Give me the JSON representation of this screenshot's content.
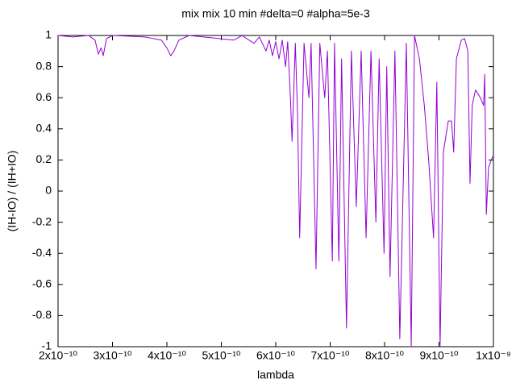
{
  "chart_data": {
    "type": "line",
    "title": "mix mix 10 min #delta=0 #alpha=5e-3",
    "xlabel": "lambda",
    "ylabel": "(IH-IO) / (IH+IO)",
    "x": [
      2e-10,
      2.27e-10,
      2.56e-10,
      2.68e-10,
      2.74e-10,
      2.79e-10,
      2.83e-10,
      2.89e-10,
      3.01e-10,
      3.6e-10,
      3.9e-10,
      4e-10,
      4.07e-10,
      4.13e-10,
      4.22e-10,
      4.41e-10,
      5.23e-10,
      5.38e-10,
      5.6e-10,
      5.7e-10,
      5.82e-10,
      5.88e-10,
      5.94e-10,
      6e-10,
      6.06e-10,
      6.12e-10,
      6.18e-10,
      6.22e-10,
      6.27e-10,
      6.3e-10,
      6.36e-10,
      6.4e-10,
      6.44e-10,
      6.52e-10,
      6.61e-10,
      6.65e-10,
      6.74e-10,
      6.81e-10,
      6.9e-10,
      6.95e-10,
      7.04e-10,
      7.08e-10,
      7.16e-10,
      7.21e-10,
      7.3e-10,
      7.39e-10,
      7.48e-10,
      7.57e-10,
      7.66e-10,
      7.75e-10,
      7.84e-10,
      7.9e-10,
      7.99e-10,
      8.04e-10,
      8.1e-10,
      8.19e-10,
      8.28e-10,
      8.34e-10,
      8.4e-10,
      8.49e-10,
      8.55e-10,
      8.64e-10,
      8.73e-10,
      8.81e-10,
      8.9e-10,
      8.96e-10,
      9.02e-10,
      9.08e-10,
      9.17e-10,
      9.23e-10,
      9.27e-10,
      9.32e-10,
      9.41e-10,
      9.47e-10,
      9.53e-10,
      9.57e-10,
      9.61e-10,
      9.67e-10,
      9.76e-10,
      9.82e-10,
      9.84e-10,
      9.87e-10,
      9.91e-10,
      9.96e-10,
      1e-09
    ],
    "series": [
      {
        "color": "#9400d3",
        "values": [
          1,
          0.99,
          1,
          0.97,
          0.88,
          0.92,
          0.87,
          0.98,
          1,
          0.99,
          0.97,
          0.92,
          0.87,
          0.9,
          0.97,
          1,
          0.97,
          1,
          0.95,
          0.99,
          0.9,
          0.97,
          0.87,
          0.96,
          0.85,
          0.97,
          0.8,
          0.96,
          0.6,
          0.32,
          0.95,
          0.5,
          -0.3,
          0.95,
          0.6,
          0.95,
          -0.5,
          0.95,
          0.6,
          0.9,
          -0.45,
          0.95,
          -0.45,
          0.85,
          -0.88,
          0.9,
          -0.1,
          0.9,
          -0.3,
          0.9,
          -0.2,
          0.85,
          -0.4,
          0.8,
          -0.55,
          0.9,
          -0.95,
          0,
          0.95,
          -1,
          1,
          0.85,
          0.55,
          0.2,
          -0.3,
          0.7,
          -1,
          0.25,
          0.45,
          0.45,
          0.25,
          0.85,
          0.97,
          0.98,
          0.9,
          0.05,
          0.55,
          0.65,
          0.6,
          0.55,
          0.75,
          -0.15,
          0.15,
          0.2,
          0.23
        ]
      }
    ],
    "xlim": [
      2e-10,
      1e-09
    ],
    "ylim": [
      -1,
      1
    ],
    "xticks": [
      {
        "value": 2e-10,
        "label": "2x10⁻¹⁰"
      },
      {
        "value": 3e-10,
        "label": "3x10⁻¹⁰"
      },
      {
        "value": 4e-10,
        "label": "4x10⁻¹⁰"
      },
      {
        "value": 5e-10,
        "label": "5x10⁻¹⁰"
      },
      {
        "value": 6e-10,
        "label": "6x10⁻¹⁰"
      },
      {
        "value": 7e-10,
        "label": "7x10⁻¹⁰"
      },
      {
        "value": 8e-10,
        "label": "8x10⁻¹⁰"
      },
      {
        "value": 9e-10,
        "label": "9x10⁻¹⁰"
      },
      {
        "value": 1e-09,
        "label": "1x10⁻⁹"
      }
    ],
    "yticks": [
      -1,
      -0.8,
      -0.6,
      -0.4,
      -0.2,
      0,
      0.2,
      0.4,
      0.6,
      0.8,
      1
    ],
    "grid": false
  }
}
